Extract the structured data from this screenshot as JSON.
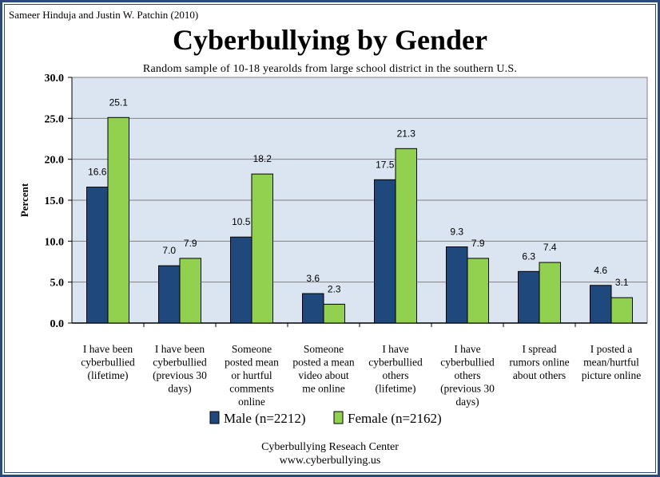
{
  "credit": "Sameer Hinduja and Justin W. Patchin (2010)",
  "footer": {
    "line1": "Cyberbullying Reseach Center",
    "line2": "www.cyberbullying.us"
  },
  "colors": {
    "male": "#1f497d",
    "female": "#92d050",
    "plot_bg": "#dbe5f1",
    "frame": "#2b4a7a"
  },
  "chart_data": {
    "type": "bar",
    "title": "Cyberbullying by Gender",
    "subtitle": "Random sample of  10-18 yearolds from large school district in the southern U.S.",
    "ylabel": "Percent",
    "xlabel": "",
    "ylim": [
      0,
      30
    ],
    "yticks": [
      "0.0",
      "5.0",
      "10.0",
      "15.0",
      "20.0",
      "25.0",
      "30.0"
    ],
    "grid": true,
    "legend": "bottom",
    "categories": [
      [
        "I have been",
        "cyberbullied",
        "(lifetime)"
      ],
      [
        "I have been",
        "cyberbullied",
        "(previous 30",
        "days)"
      ],
      [
        "Someone",
        "posted mean",
        "or hurtful",
        "comments",
        "online"
      ],
      [
        "Someone",
        "posted a mean",
        "video about",
        "me online"
      ],
      [
        "I have",
        "cyberbullied",
        "others",
        "(lifetime)"
      ],
      [
        "I have",
        "cyberbullied",
        "others",
        "(previous 30",
        "days)"
      ],
      [
        "I spread",
        "rumors online",
        "about others"
      ],
      [
        "I posted a",
        "mean/hurtful",
        "picture online"
      ]
    ],
    "series": [
      {
        "name": "Male (n=2212)",
        "values": [
          16.6,
          7.0,
          10.5,
          3.6,
          17.5,
          9.3,
          6.3,
          4.6
        ]
      },
      {
        "name": "Female (n=2162)",
        "values": [
          25.1,
          7.9,
          18.2,
          2.3,
          21.3,
          7.9,
          7.4,
          3.1
        ]
      }
    ]
  }
}
